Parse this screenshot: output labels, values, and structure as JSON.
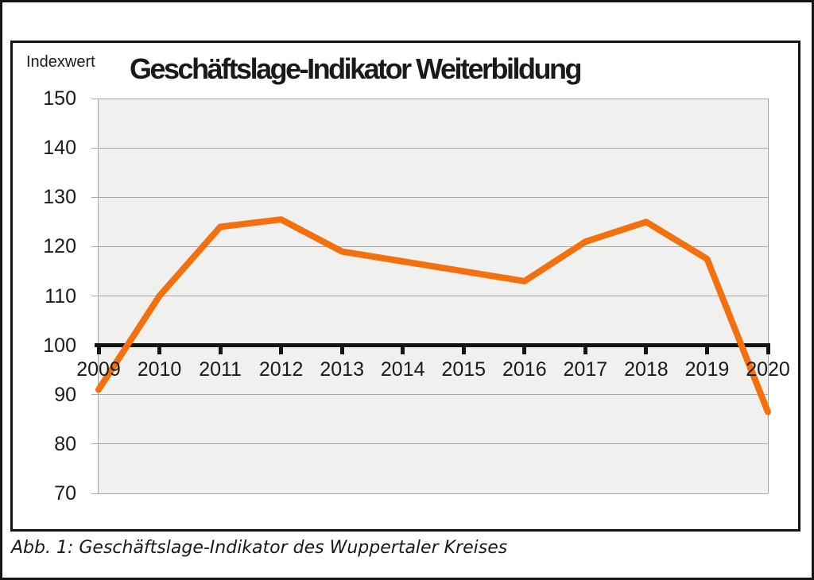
{
  "header": {
    "y_axis_title": "Indexwert",
    "title": "Geschäftslage-Indikator Weiterbildung"
  },
  "caption": "Abb. 1: Geschäftslage-Indikator des Wuppertaler Kreises",
  "chart_data": {
    "type": "line",
    "title": "Geschäftslage-Indikator Weiterbildung",
    "ylabel": "Indexwert",
    "xlabel": "",
    "categories": [
      "2009",
      "2010",
      "2011",
      "2012",
      "2013",
      "2014",
      "2015",
      "2016",
      "2017",
      "2018",
      "2019",
      "2020"
    ],
    "series": [
      {
        "name": "Geschäftslage-Indikator",
        "values": [
          91,
          110,
          124,
          125.5,
          119,
          117,
          115,
          113,
          121,
          125,
          117.5,
          86.5
        ]
      }
    ],
    "ylim": [
      70,
      150
    ],
    "ytick_step": 10,
    "baseline": 100,
    "grid": true,
    "legend_position": "none",
    "line_color": "#F2700E",
    "plot_bg": "#F0F0EE",
    "grid_color": "#A6A6A6",
    "axis_color": "#141414"
  }
}
